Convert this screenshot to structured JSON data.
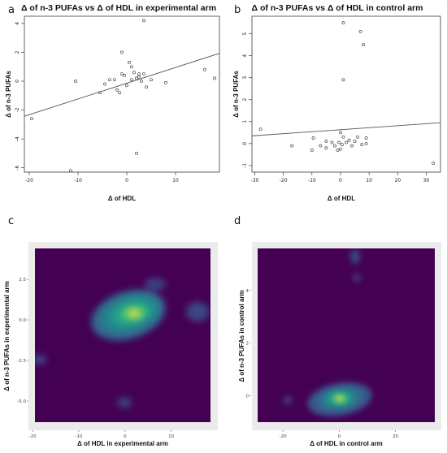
{
  "panels": {
    "a": {
      "letter": "a"
    },
    "b": {
      "letter": "b"
    },
    "c": {
      "letter": "c"
    },
    "d": {
      "letter": "d"
    }
  },
  "colors": {
    "density_low": "#440154",
    "density_high": "#fde725",
    "gg_background": "#ebebeb",
    "points": "#222222",
    "regression_line": "#555555"
  },
  "chart_data": [
    {
      "id": "a",
      "type": "scatter",
      "title": "Δ of n-3 PUFAs vs Δ of HDL in experimental arm",
      "xlabel": "Δ of HDL",
      "ylabel": "Δ of n-3 PUFAs",
      "xlim": [
        -21,
        19
      ],
      "ylim": [
        -6.3,
        4.5
      ],
      "xticks": [
        -20,
        -10,
        0,
        10
      ],
      "yticks": [
        -6,
        -4,
        -2,
        0,
        2,
        4
      ],
      "grid": false,
      "points": [
        {
          "x": -19.5,
          "y": -2.6
        },
        {
          "x": -11.5,
          "y": -6.2
        },
        {
          "x": -10.5,
          "y": 0.0
        },
        {
          "x": -5.5,
          "y": -0.8
        },
        {
          "x": -4.5,
          "y": -0.2
        },
        {
          "x": -3.5,
          "y": 0.1
        },
        {
          "x": -2.5,
          "y": 0.1
        },
        {
          "x": -2.0,
          "y": -0.6
        },
        {
          "x": -1.5,
          "y": -0.8
        },
        {
          "x": -1.0,
          "y": 0.5
        },
        {
          "x": -1.0,
          "y": 2.0
        },
        {
          "x": -0.5,
          "y": 0.4
        },
        {
          "x": 0.0,
          "y": -0.3
        },
        {
          "x": 0.5,
          "y": 1.3
        },
        {
          "x": 1.0,
          "y": 1.0
        },
        {
          "x": 1.0,
          "y": 0.1
        },
        {
          "x": 1.5,
          "y": 0.6
        },
        {
          "x": 2.0,
          "y": 0.2
        },
        {
          "x": 2.0,
          "y": -5.0
        },
        {
          "x": 2.5,
          "y": 0.3
        },
        {
          "x": 2.5,
          "y": 0.5
        },
        {
          "x": 3.0,
          "y": 0.0
        },
        {
          "x": 3.5,
          "y": 0.5
        },
        {
          "x": 4.0,
          "y": -0.4
        },
        {
          "x": 3.5,
          "y": 4.2
        },
        {
          "x": 5.0,
          "y": 0.1
        },
        {
          "x": 8.0,
          "y": -0.1
        },
        {
          "x": 16.0,
          "y": 0.8
        },
        {
          "x": 18.0,
          "y": 0.2
        }
      ],
      "regression": {
        "x": [
          -21,
          19
        ],
        "y": [
          -2.43,
          1.93
        ]
      }
    },
    {
      "id": "b",
      "type": "scatter",
      "title": "Δ of n-3 PUFAs vs Δ of HDL in control arm",
      "xlabel": "Δ of HDL",
      "ylabel": "Δ of n-3 PUFAs",
      "xlim": [
        -31,
        35
      ],
      "ylim": [
        -1.3,
        5.8
      ],
      "xticks": [
        -30,
        -20,
        -10,
        0,
        10,
        20,
        30
      ],
      "yticks": [
        -1,
        0,
        1,
        2,
        3,
        4,
        5
      ],
      "grid": false,
      "points": [
        {
          "x": -28,
          "y": 0.65
        },
        {
          "x": -17,
          "y": -0.1
        },
        {
          "x": -10,
          "y": -0.3
        },
        {
          "x": -9.5,
          "y": 0.25
        },
        {
          "x": -7,
          "y": -0.1
        },
        {
          "x": -5,
          "y": 0.1
        },
        {
          "x": -5,
          "y": -0.2
        },
        {
          "x": -3,
          "y": 0.05
        },
        {
          "x": -2,
          "y": -0.1
        },
        {
          "x": -1,
          "y": -0.3
        },
        {
          "x": -0.5,
          "y": 0.05
        },
        {
          "x": 0,
          "y": -0.25
        },
        {
          "x": 0,
          "y": 0.5
        },
        {
          "x": 0.5,
          "y": -0.05
        },
        {
          "x": 1,
          "y": 0.3
        },
        {
          "x": 1,
          "y": 2.9
        },
        {
          "x": 1,
          "y": 5.5
        },
        {
          "x": 2,
          "y": 0.05
        },
        {
          "x": 3,
          "y": 0.15
        },
        {
          "x": 4,
          "y": -0.1
        },
        {
          "x": 5,
          "y": 0.1
        },
        {
          "x": 6,
          "y": 0.3
        },
        {
          "x": 7,
          "y": 5.1
        },
        {
          "x": 8,
          "y": 4.5
        },
        {
          "x": 7.5,
          "y": -0.05
        },
        {
          "x": 9,
          "y": 0.25
        },
        {
          "x": 9,
          "y": 0.0
        },
        {
          "x": 32.5,
          "y": -0.9
        }
      ],
      "regression": {
        "x": [
          -31,
          35
        ],
        "y": [
          0.35,
          0.95
        ]
      }
    },
    {
      "id": "c",
      "type": "heatmap",
      "xlabel": "Δ of HDL in experimental arm",
      "ylabel": "Δ of n-3 PUFAs in experimental arm",
      "xlim": [
        -19.5,
        18.5
      ],
      "ylim": [
        -6.3,
        4.4
      ],
      "xticks": [
        -20,
        -10,
        0,
        10
      ],
      "yticks": [
        -5,
        -2.5,
        0,
        2.5
      ],
      "ytick_labels": [
        "-5.0",
        "-2.5",
        "0.0",
        "2.5"
      ],
      "grid": false
    },
    {
      "id": "d",
      "type": "heatmap",
      "xlabel": "Δ of HDL in control arm",
      "ylabel": "Δ of n-3 PUFAs in control arm",
      "xlim": [
        -29,
        34
      ],
      "ylim": [
        -1.0,
        5.6
      ],
      "xticks": [
        -20,
        0,
        20
      ],
      "yticks": [
        0,
        2,
        4
      ],
      "grid": false
    }
  ]
}
